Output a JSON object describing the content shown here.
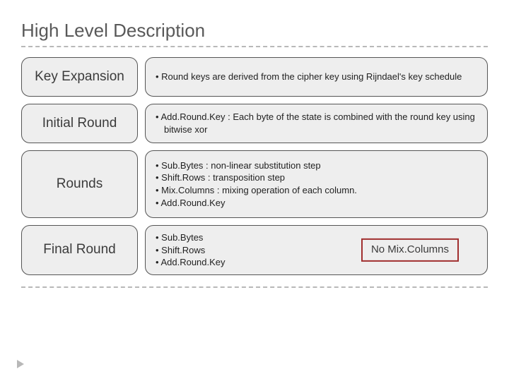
{
  "title": "High Level Description",
  "rows": [
    {
      "label": "Key Expansion",
      "bullets": [
        "Round keys are derived from the cipher key using Rijndael's key schedule"
      ]
    },
    {
      "label": "Initial Round",
      "bullets": [
        "Add.Round.Key  : Each byte of the state is combined with the round key using bitwise xor"
      ]
    },
    {
      "label": "Rounds",
      "bullets": [
        "Sub.Bytes          : non-linear substitution step",
        "Shift.Rows          : transposition step",
        "Mix.Columns     : mixing operation of each column.",
        "Add.Round.Key"
      ]
    },
    {
      "label": "Final Round",
      "bullets": [
        "Sub.Bytes",
        "Shift.Rows",
        "Add.Round.Key"
      ],
      "note": "No Mix.Columns"
    }
  ],
  "style": {
    "minRowHeight": [
      56,
      56,
      96,
      64
    ],
    "labelBg": "#eeeeee",
    "descBg": "#eeeeee",
    "borderColor": "#555555",
    "noteBorder": "#a12f2f",
    "dashColor": "#b8b8b8",
    "titleColor": "#595959",
    "titleFontSize": 26,
    "labelFontSize": 19,
    "descFontSize": 13
  }
}
